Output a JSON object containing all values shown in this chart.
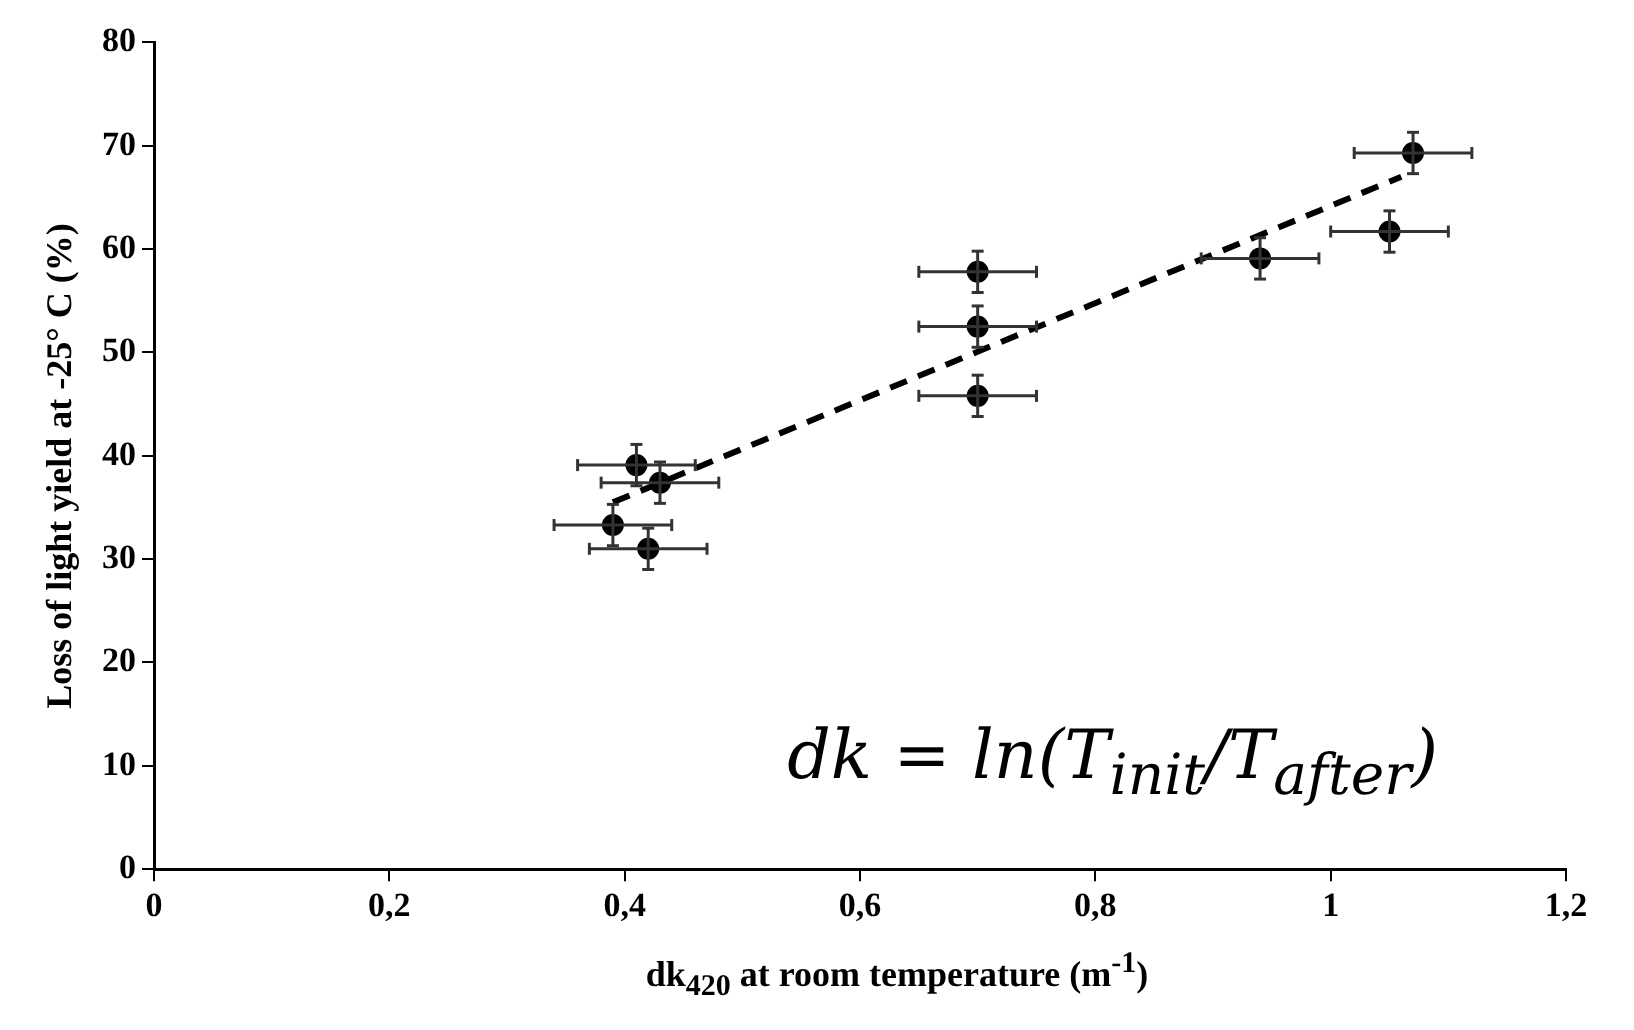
{
  "chart_data": {
    "type": "scatter",
    "xlabel": "dk$_{420}$ at room temperature (m$^{-1}$)",
    "ylabel": "Loss of light yield at -25° C (%)",
    "annotations": [
      "dk = ln(T$_{init}$/T$_{after}$)"
    ],
    "series": [
      {
        "color": "#000000",
        "marker": "circle",
        "x": [
          0.39,
          0.41,
          0.43,
          0.42,
          0.7,
          0.7,
          0.7,
          0.94,
          1.05,
          1.07
        ],
        "values": [
          33.3,
          39.1,
          37.4,
          31.0,
          45.8,
          52.5,
          57.8,
          59.1,
          61.7,
          69.3
        ],
        "errors": [
          2,
          2,
          2,
          2,
          2,
          2,
          2,
          2,
          2,
          2
        ],
        "xerrors": [
          0.05,
          0.05,
          0.05,
          0.05,
          0.05,
          0.05,
          0.05,
          0.05,
          0.05,
          0.05
        ]
      },
      {
        "type": "line",
        "color": "#000000",
        "marker": "none",
        "line_style": "dashed",
        "x": [
          0.39,
          1.06
        ],
        "values": [
          35.5,
          67
        ]
      }
    ],
    "xlim": [
      0,
      1.2
    ],
    "xticks": [
      0,
      {
        "value": 0.2,
        "label": "0,2"
      },
      {
        "value": 0.4,
        "label": "0,4"
      },
      {
        "value": 0.6,
        "label": "0,6"
      },
      {
        "value": 0.8,
        "label": "0,8"
      },
      1,
      {
        "value": 1.2,
        "label": "1,2"
      }
    ],
    "ylim": [
      0,
      80
    ],
    "yticks": [
      0,
      10,
      20,
      30,
      40,
      50,
      60,
      70,
      80
    ],
    "grid": false,
    "legend": false
  }
}
